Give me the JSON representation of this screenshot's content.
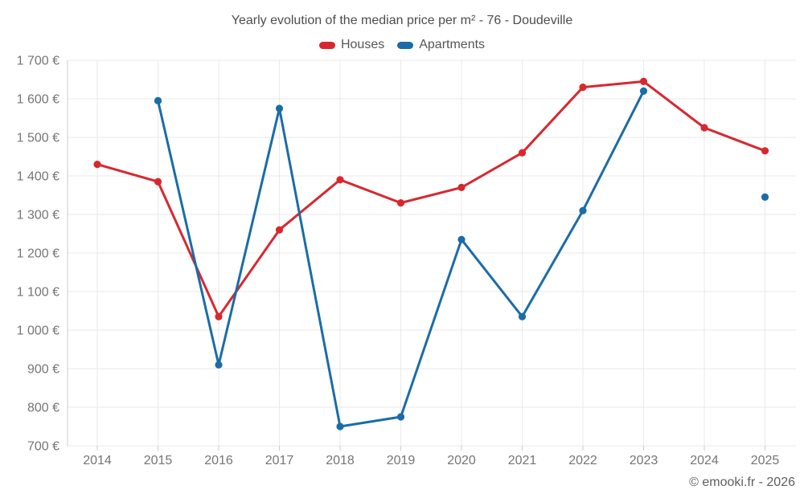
{
  "chart_data": {
    "type": "line",
    "title": "Yearly evolution of the median price per m² - 76 - Doudeville",
    "categories": [
      "2014",
      "2015",
      "2016",
      "2017",
      "2018",
      "2019",
      "2020",
      "2021",
      "2022",
      "2023",
      "2024",
      "2025"
    ],
    "series": [
      {
        "name": "Houses",
        "color": "#d7282f",
        "values": [
          1430,
          1385,
          1035,
          1260,
          1390,
          1330,
          1370,
          1460,
          1630,
          1645,
          1525,
          1465
        ]
      },
      {
        "name": "Apartments",
        "color": "#1b6ca8",
        "values": [
          null,
          1595,
          910,
          1575,
          750,
          775,
          1235,
          1035,
          1310,
          1620,
          null,
          1345
        ]
      }
    ],
    "ylim": [
      700,
      1700
    ],
    "y_tick_step": 100,
    "y_tick_labels": [
      "700 €",
      "800 €",
      "900 €",
      "1 000 €",
      "1 100 €",
      "1 200 €",
      "1 300 €",
      "1 400 €",
      "1 500 €",
      "1 600 €",
      "1 700 €"
    ],
    "unit": "€",
    "grid": true,
    "legend_position": "top",
    "watermark": "© emooki.fr - 2026"
  },
  "style": {
    "grid_color": "#e9e9e9",
    "axis_color": "#cccccc",
    "tick_label_color": "#757575"
  }
}
